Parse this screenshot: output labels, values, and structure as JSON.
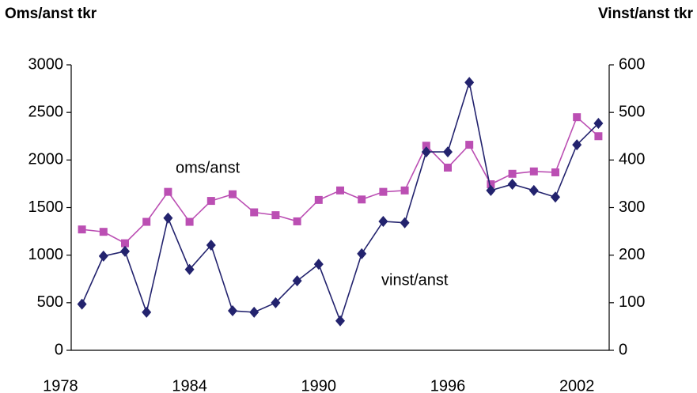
{
  "chart_data": {
    "type": "line",
    "y_title": "Oms/anst tkr",
    "y2_title": "Vinst/anst tkr",
    "x": [
      1979,
      1980,
      1981,
      1982,
      1983,
      1984,
      1985,
      1986,
      1987,
      1988,
      1989,
      1990,
      1991,
      1992,
      1993,
      1994,
      1995,
      1996,
      1997,
      1998,
      1999,
      2000,
      2001,
      2002,
      2003
    ],
    "series": [
      {
        "name": "oms/anst",
        "color": "#bb4fb3",
        "marker": "square",
        "axis": "y",
        "values": [
          1270,
          1245,
          1125,
          1350,
          1665,
          1350,
          1570,
          1640,
          1450,
          1420,
          1355,
          1580,
          1680,
          1585,
          1665,
          1680,
          2150,
          1920,
          2160,
          1745,
          1855,
          1880,
          1870,
          2450,
          2250
        ]
      },
      {
        "name": "vinst/anst",
        "color": "#23236e",
        "marker": "diamond",
        "axis": "y2",
        "values": [
          97,
          198,
          208,
          80,
          278,
          170,
          221,
          83,
          80,
          100,
          146,
          181,
          62,
          203,
          271,
          268,
          417,
          417,
          563,
          336,
          349,
          336,
          322,
          432,
          477
        ]
      }
    ],
    "xlim": [
      1978.5,
      2003.5
    ],
    "xticks": [
      1978,
      1984,
      1990,
      1996,
      2002
    ],
    "ylim": [
      0,
      3000
    ],
    "yticks": [
      0,
      500,
      1000,
      1500,
      2000,
      2500,
      3000
    ],
    "y2lim": [
      0,
      600
    ],
    "y2ticks": [
      0,
      100,
      200,
      300,
      400,
      500,
      600
    ]
  }
}
